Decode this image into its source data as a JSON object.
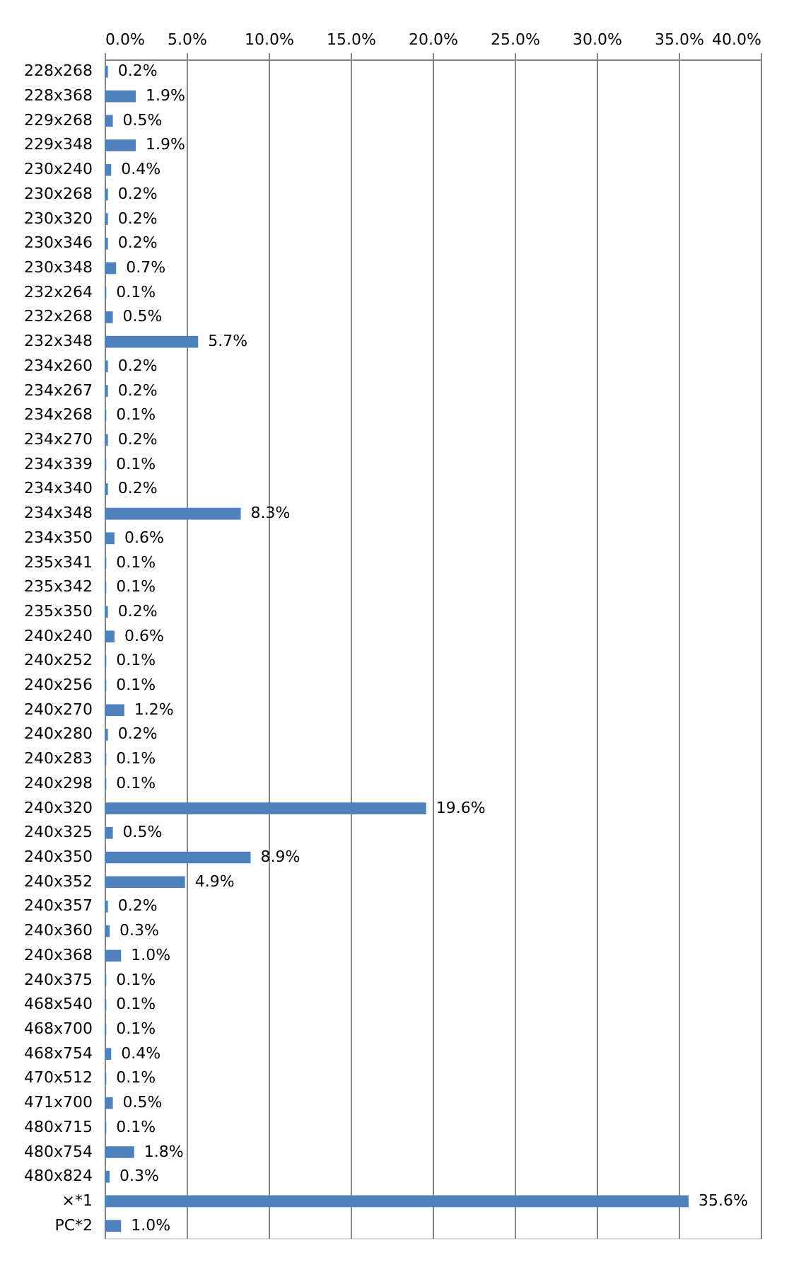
{
  "chart_data": {
    "type": "bar",
    "orientation": "horizontal",
    "categories": [
      "228x268",
      "228x368",
      "229x268",
      "229x348",
      "230x240",
      "230x268",
      "230x320",
      "230x346",
      "230x348",
      "232x264",
      "232x268",
      "232x348",
      "234x260",
      "234x267",
      "234x268",
      "234x270",
      "234x339",
      "234x340",
      "234x348",
      "234x350",
      "235x341",
      "235x342",
      "235x350",
      "240x240",
      "240x252",
      "240x256",
      "240x270",
      "240x280",
      "240x283",
      "240x298",
      "240x320",
      "240x325",
      "240x350",
      "240x352",
      "240x357",
      "240x360",
      "240x368",
      "240x375",
      "468x540",
      "468x700",
      "468x754",
      "470x512",
      "471x700",
      "480x715",
      "480x754",
      "480x824",
      "×*1",
      "PC*2"
    ],
    "values": [
      0.2,
      1.9,
      0.5,
      1.9,
      0.4,
      0.2,
      0.2,
      0.2,
      0.7,
      0.1,
      0.5,
      5.7,
      0.2,
      0.2,
      0.1,
      0.2,
      0.1,
      0.2,
      8.3,
      0.6,
      0.1,
      0.1,
      0.2,
      0.6,
      0.1,
      0.1,
      1.2,
      0.2,
      0.1,
      0.1,
      19.6,
      0.5,
      8.9,
      4.9,
      0.2,
      0.3,
      1.0,
      0.1,
      0.1,
      0.1,
      0.4,
      0.1,
      0.5,
      0.1,
      1.8,
      0.3,
      35.6,
      1.0
    ],
    "value_labels": [
      "0.2%",
      "1.9%",
      "0.5%",
      "1.9%",
      "0.4%",
      "0.2%",
      "0.2%",
      "0.2%",
      "0.7%",
      "0.1%",
      "0.5%",
      "5.7%",
      "0.2%",
      "0.2%",
      "0.1%",
      "0.2%",
      "0.1%",
      "0.2%",
      "8.3%",
      "0.6%",
      "0.1%",
      "0.1%",
      "0.2%",
      "0.6%",
      "0.1%",
      "0.1%",
      "1.2%",
      "0.2%",
      "0.1%",
      "0.1%",
      "19.6%",
      "0.5%",
      "8.9%",
      "4.9%",
      "0.2%",
      "0.3%",
      "1.0%",
      "0.1%",
      "0.1%",
      "0.1%",
      "0.4%",
      "0.1%",
      "0.5%",
      "0.1%",
      "1.8%",
      "0.3%",
      "35.6%",
      "1.0%"
    ],
    "color": "#4f81bd",
    "xlim": [
      0,
      40
    ],
    "xticks": [
      {
        "value": 0,
        "label": "0.0%"
      },
      {
        "value": 5,
        "label": "5.0%"
      },
      {
        "value": 10,
        "label": "10.0%"
      },
      {
        "value": 15,
        "label": "15.0%"
      },
      {
        "value": 20,
        "label": "20.0%"
      },
      {
        "value": 25,
        "label": "25.0%"
      },
      {
        "value": 30,
        "label": "30.0%"
      },
      {
        "value": 35,
        "label": "35.0%"
      },
      {
        "value": 40,
        "label": "40.0%"
      }
    ],
    "grid": "x"
  }
}
